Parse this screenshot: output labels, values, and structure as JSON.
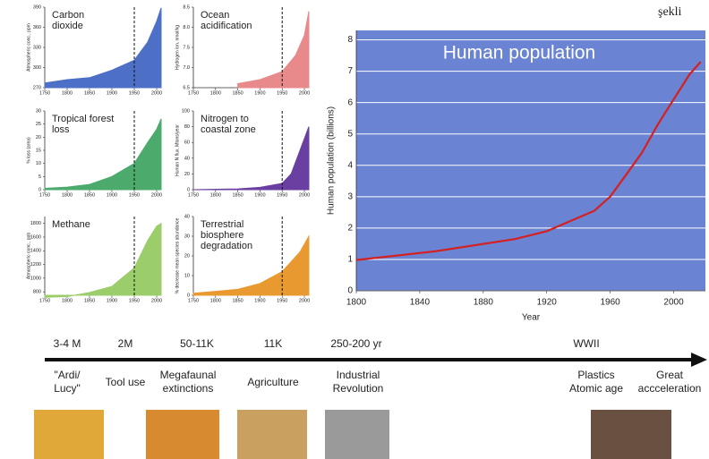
{
  "corner_text": "şekli",
  "chart_data": [
    {
      "type": "area",
      "title": [
        "Carbon",
        "dioxide"
      ],
      "ylabel": "Atmospheric conc., ppm",
      "color": "#4d6fc6",
      "x": [
        1750,
        1800,
        1850,
        1900,
        1950,
        1980,
        2000,
        2010
      ],
      "values": [
        277,
        282,
        285,
        296,
        311,
        338,
        369,
        389
      ],
      "xlim": [
        1750,
        2010
      ],
      "xticks": [
        1750,
        1800,
        1850,
        1900,
        1950,
        2000
      ],
      "ylim": [
        270,
        390
      ],
      "yticks": [
        270,
        300,
        330,
        360,
        390
      ],
      "vline": 1950,
      "grid": false
    },
    {
      "type": "area",
      "title": [
        "Ocean",
        "acidification"
      ],
      "ylabel": "Hydrogen ion, nmol/kg",
      "color": "#e8898c",
      "x": [
        1850,
        1900,
        1950,
        1980,
        2000,
        2010
      ],
      "values": [
        6.6,
        6.7,
        6.9,
        7.3,
        7.8,
        8.4
      ],
      "xlim": [
        1750,
        2010
      ],
      "xticks": [
        1750,
        1800,
        1850,
        1900,
        1950,
        2000
      ],
      "ylim": [
        6.5,
        8.5
      ],
      "yticks": [
        6.5,
        {
          "value": 7,
          "label": "7.0"
        },
        7.5,
        {
          "value": 8,
          "label": "8.0"
        },
        8.5
      ],
      "vline": 1950,
      "grid": false
    },
    {
      "type": "area",
      "title": [
        "Tropical forest",
        "loss"
      ],
      "ylabel": "% loss (area)",
      "color": "#4caa6c",
      "x": [
        1750,
        1800,
        1850,
        1900,
        1950,
        1980,
        2000,
        2010
      ],
      "values": [
        0.5,
        1,
        2,
        5,
        10,
        18,
        23,
        27
      ],
      "xlim": [
        1750,
        2010
      ],
      "xticks": [
        1750,
        1800,
        1850,
        1900,
        1950,
        2000
      ],
      "ylim": [
        0,
        30
      ],
      "yticks": [
        0,
        5,
        10,
        15,
        20,
        25,
        30
      ],
      "vline": 1950,
      "grid": false
    },
    {
      "type": "area",
      "title": [
        "Nitrogen to",
        "coastal zone"
      ],
      "ylabel": "Human N flux, Mtons/year",
      "color": "#6a3fa2",
      "x": [
        1750,
        1850,
        1900,
        1950,
        1970,
        1990,
        2010
      ],
      "values": [
        0,
        1,
        3,
        8,
        20,
        50,
        80
      ],
      "xlim": [
        1750,
        2010
      ],
      "xticks": [
        1750,
        1800,
        1850,
        1900,
        1950,
        2000
      ],
      "ylim": [
        0,
        100
      ],
      "yticks": [
        0,
        20,
        40,
        60,
        80,
        100
      ],
      "vline": 1950,
      "grid": false
    },
    {
      "type": "area",
      "title": [
        "Methane"
      ],
      "ylabel": "Atmospheric conc., ppb",
      "color": "#9ccd6b",
      "x": [
        1750,
        1800,
        1850,
        1900,
        1950,
        1980,
        2000,
        2010
      ],
      "values": [
        720,
        730,
        790,
        880,
        1150,
        1550,
        1760,
        1800
      ],
      "xlim": [
        1750,
        2010
      ],
      "xticks": [
        1750,
        1800,
        1850,
        1900,
        1950,
        2000
      ],
      "ylim": [
        750,
        1900
      ],
      "yticks": [
        800,
        1000,
        1200,
        1400,
        1600,
        1800
      ],
      "vline": 1950,
      "grid": false
    },
    {
      "type": "area",
      "title": [
        "Terrestrial",
        "biosphere",
        "degradation"
      ],
      "ylabel": "% decrease mean species abundance",
      "color": "#e89a31",
      "x": [
        1750,
        1850,
        1900,
        1950,
        1990,
        2010
      ],
      "values": [
        1,
        3,
        6,
        12,
        22,
        30
      ],
      "xlim": [
        1750,
        2010
      ],
      "xticks": [
        1750,
        1800,
        1850,
        1900,
        1950,
        2000
      ],
      "ylim": [
        0,
        40
      ],
      "yticks": [
        0,
        10,
        20,
        30,
        40
      ],
      "vline": 1950,
      "grid": false
    },
    {
      "type": "line",
      "title": [
        "Human population"
      ],
      "ylabel": "Human population (billions)",
      "xlabel": "Year",
      "color": "#d42020",
      "background": "#6a83d3",
      "x": [
        1800,
        1850,
        1900,
        1920,
        1950,
        1960,
        1970,
        1980,
        1990,
        2000,
        2010,
        2017
      ],
      "values": [
        0.98,
        1.26,
        1.65,
        1.9,
        2.55,
        3.0,
        3.7,
        4.4,
        5.3,
        6.1,
        6.9,
        7.3
      ],
      "xlim": [
        1800,
        2020
      ],
      "xticks": [
        1800,
        1840,
        1880,
        1920,
        1960,
        2000
      ],
      "ylim": [
        0,
        8.3
      ],
      "yticks": [
        0,
        1,
        2,
        3,
        4,
        5,
        6,
        7,
        8
      ],
      "grid": true
    }
  ],
  "timeline": {
    "periods": [
      "3-4 M",
      "2M",
      "50-11K",
      "11K",
      "250-200 yr",
      "WWII"
    ],
    "events": [
      [
        "\"Ardi/",
        "Lucy\""
      ],
      [
        "Tool use"
      ],
      [
        "Megafaunal",
        "extinctions"
      ],
      [
        "Agriculture"
      ],
      [
        "Industrial",
        "Revolution"
      ],
      [
        "Plastics",
        "Atomic age"
      ],
      [
        "Great",
        "accceleration"
      ]
    ]
  }
}
